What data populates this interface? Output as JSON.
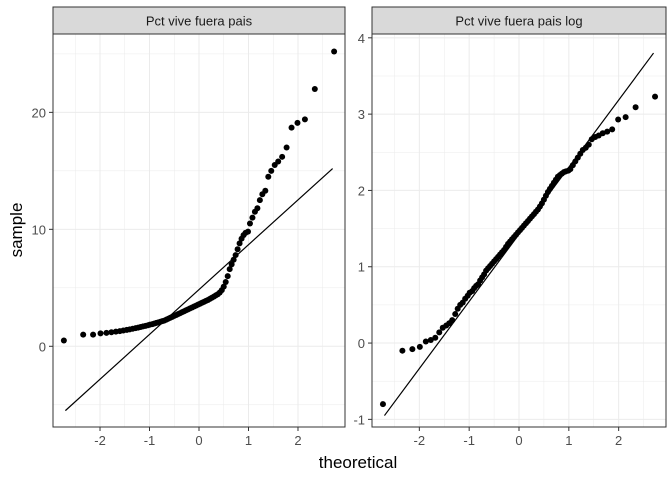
{
  "chart_data": {
    "type": "scatter",
    "xlabel": "theoretical",
    "ylabel": "sample",
    "panels": [
      {
        "title": "Pct vive fuera pais",
        "xlim": [
          -2.95,
          2.95
        ],
        "ylim": [
          -6.9,
          26.7
        ],
        "x_ticks": [
          -2,
          -1,
          0,
          1,
          2
        ],
        "x_tick_labels": [
          "-2",
          "-1",
          "0",
          "1",
          "2"
        ],
        "y_ticks": [
          0,
          10,
          20
        ],
        "y_tick_labels": [
          "0",
          "10",
          "20"
        ],
        "reference_line": {
          "x": [
            -2.7,
            2.7
          ],
          "y": [
            -5.5,
            15.2
          ]
        },
        "points": [
          [
            -2.73,
            0.5
          ],
          [
            -2.34,
            1.0
          ],
          [
            -2.14,
            1.0
          ],
          [
            -1.99,
            1.1
          ],
          [
            -1.87,
            1.15
          ],
          [
            -1.77,
            1.2
          ],
          [
            -1.68,
            1.25
          ],
          [
            -1.6,
            1.3
          ],
          [
            -1.53,
            1.35
          ],
          [
            -1.46,
            1.4
          ],
          [
            -1.4,
            1.45
          ],
          [
            -1.34,
            1.5
          ],
          [
            -1.28,
            1.55
          ],
          [
            -1.23,
            1.6
          ],
          [
            -1.18,
            1.65
          ],
          [
            -1.13,
            1.7
          ],
          [
            -1.08,
            1.75
          ],
          [
            -1.03,
            1.8
          ],
          [
            -0.99,
            1.85
          ],
          [
            -0.94,
            1.9
          ],
          [
            -0.9,
            1.95
          ],
          [
            -0.86,
            2.0
          ],
          [
            -0.82,
            2.05
          ],
          [
            -0.78,
            2.1
          ],
          [
            -0.74,
            2.15
          ],
          [
            -0.7,
            2.2
          ],
          [
            -0.66,
            2.28
          ],
          [
            -0.62,
            2.36
          ],
          [
            -0.58,
            2.44
          ],
          [
            -0.54,
            2.52
          ],
          [
            -0.5,
            2.6
          ],
          [
            -0.46,
            2.68
          ],
          [
            -0.42,
            2.76
          ],
          [
            -0.38,
            2.84
          ],
          [
            -0.34,
            2.92
          ],
          [
            -0.3,
            3.0
          ],
          [
            -0.26,
            3.08
          ],
          [
            -0.22,
            3.16
          ],
          [
            -0.18,
            3.24
          ],
          [
            -0.14,
            3.32
          ],
          [
            -0.1,
            3.4
          ],
          [
            -0.06,
            3.48
          ],
          [
            -0.02,
            3.56
          ],
          [
            0.02,
            3.64
          ],
          [
            0.06,
            3.72
          ],
          [
            0.1,
            3.8
          ],
          [
            0.14,
            3.88
          ],
          [
            0.18,
            3.96
          ],
          [
            0.22,
            4.05
          ],
          [
            0.26,
            4.15
          ],
          [
            0.3,
            4.25
          ],
          [
            0.34,
            4.35
          ],
          [
            0.38,
            4.45
          ],
          [
            0.42,
            4.6
          ],
          [
            0.46,
            4.8
          ],
          [
            0.5,
            5.1
          ],
          [
            0.54,
            5.5
          ],
          [
            0.58,
            6.0
          ],
          [
            0.62,
            6.6
          ],
          [
            0.66,
            7.0
          ],
          [
            0.7,
            7.4
          ],
          [
            0.74,
            7.8
          ],
          [
            0.78,
            8.3
          ],
          [
            0.82,
            8.8
          ],
          [
            0.86,
            9.2
          ],
          [
            0.9,
            9.5
          ],
          [
            0.94,
            9.7
          ],
          [
            0.99,
            9.8
          ],
          [
            1.03,
            10.5
          ],
          [
            1.08,
            11.0
          ],
          [
            1.13,
            11.5
          ],
          [
            1.18,
            11.8
          ],
          [
            1.23,
            12.5
          ],
          [
            1.28,
            13.0
          ],
          [
            1.34,
            13.3
          ],
          [
            1.4,
            14.5
          ],
          [
            1.46,
            15.0
          ],
          [
            1.53,
            15.5
          ],
          [
            1.6,
            15.8
          ],
          [
            1.68,
            16.2
          ],
          [
            1.77,
            17.0
          ],
          [
            1.87,
            18.7
          ],
          [
            1.99,
            19.1
          ],
          [
            2.14,
            19.4
          ],
          [
            2.34,
            22.0
          ],
          [
            2.73,
            25.2
          ]
        ]
      },
      {
        "title": "Pct vive fuera pais log",
        "xlim": [
          -2.95,
          2.95
        ],
        "ylim": [
          -1.1,
          4.05
        ],
        "x_ticks": [
          -2,
          -1,
          0,
          1,
          2
        ],
        "x_tick_labels": [
          "-2",
          "-1",
          "0",
          "1",
          "2"
        ],
        "y_ticks": [
          -1,
          0,
          1,
          2,
          3,
          4
        ],
        "y_tick_labels": [
          "-1",
          "0",
          "1",
          "2",
          "3",
          "4"
        ],
        "reference_line": {
          "x": [
            -2.7,
            2.7
          ],
          "y": [
            -0.95,
            3.8
          ]
        },
        "points": [
          [
            -2.73,
            -0.8
          ],
          [
            -2.34,
            -0.1
          ],
          [
            -2.14,
            -0.08
          ],
          [
            -1.99,
            -0.05
          ],
          [
            -1.87,
            0.02
          ],
          [
            -1.77,
            0.04
          ],
          [
            -1.68,
            0.07
          ],
          [
            -1.6,
            0.14
          ],
          [
            -1.53,
            0.2
          ],
          [
            -1.46,
            0.23
          ],
          [
            -1.4,
            0.26
          ],
          [
            -1.34,
            0.3
          ],
          [
            -1.28,
            0.38
          ],
          [
            -1.23,
            0.45
          ],
          [
            -1.18,
            0.5
          ],
          [
            -1.13,
            0.53
          ],
          [
            -1.08,
            0.58
          ],
          [
            -1.03,
            0.62
          ],
          [
            -0.99,
            0.66
          ],
          [
            -0.94,
            0.68
          ],
          [
            -0.9,
            0.72
          ],
          [
            -0.86,
            0.75
          ],
          [
            -0.82,
            0.77
          ],
          [
            -0.78,
            0.82
          ],
          [
            -0.74,
            0.86
          ],
          [
            -0.7,
            0.9
          ],
          [
            -0.66,
            0.95
          ],
          [
            -0.62,
            0.98
          ],
          [
            -0.58,
            1.01
          ],
          [
            -0.54,
            1.04
          ],
          [
            -0.5,
            1.07
          ],
          [
            -0.46,
            1.1
          ],
          [
            -0.42,
            1.13
          ],
          [
            -0.38,
            1.16
          ],
          [
            -0.34,
            1.19
          ],
          [
            -0.3,
            1.22
          ],
          [
            -0.26,
            1.26
          ],
          [
            -0.22,
            1.3
          ],
          [
            -0.18,
            1.33
          ],
          [
            -0.14,
            1.36
          ],
          [
            -0.1,
            1.39
          ],
          [
            -0.06,
            1.42
          ],
          [
            -0.02,
            1.45
          ],
          [
            0.02,
            1.48
          ],
          [
            0.06,
            1.51
          ],
          [
            0.1,
            1.54
          ],
          [
            0.14,
            1.57
          ],
          [
            0.18,
            1.6
          ],
          [
            0.22,
            1.63
          ],
          [
            0.26,
            1.66
          ],
          [
            0.3,
            1.69
          ],
          [
            0.34,
            1.72
          ],
          [
            0.38,
            1.75
          ],
          [
            0.42,
            1.79
          ],
          [
            0.46,
            1.83
          ],
          [
            0.5,
            1.88
          ],
          [
            0.54,
            1.93
          ],
          [
            0.58,
            1.98
          ],
          [
            0.62,
            2.02
          ],
          [
            0.66,
            2.06
          ],
          [
            0.7,
            2.1
          ],
          [
            0.74,
            2.14
          ],
          [
            0.78,
            2.18
          ],
          [
            0.82,
            2.2
          ],
          [
            0.86,
            2.22
          ],
          [
            0.9,
            2.24
          ],
          [
            0.94,
            2.25
          ],
          [
            0.99,
            2.26
          ],
          [
            1.03,
            2.28
          ],
          [
            1.08,
            2.33
          ],
          [
            1.13,
            2.38
          ],
          [
            1.18,
            2.43
          ],
          [
            1.23,
            2.48
          ],
          [
            1.28,
            2.53
          ],
          [
            1.34,
            2.56
          ],
          [
            1.4,
            2.6
          ],
          [
            1.46,
            2.67
          ],
          [
            1.53,
            2.7
          ],
          [
            1.6,
            2.72
          ],
          [
            1.68,
            2.75
          ],
          [
            1.77,
            2.77
          ],
          [
            1.87,
            2.8
          ],
          [
            1.99,
            2.93
          ],
          [
            2.14,
            2.96
          ],
          [
            2.34,
            3.09
          ],
          [
            2.73,
            3.23
          ]
        ]
      }
    ]
  }
}
